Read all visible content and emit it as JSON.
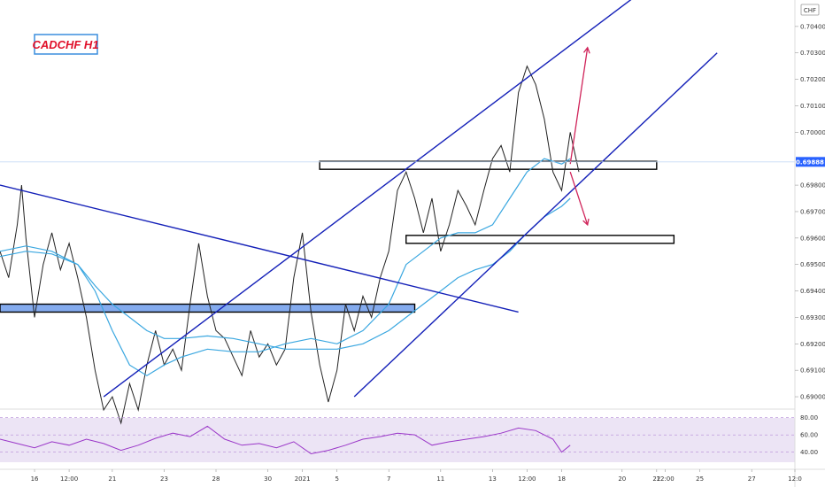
{
  "chart_data": {
    "type": "line",
    "title": "CADCHF H1",
    "currency": "CHF",
    "current_price": "0.69888",
    "ylim": [
      0.6896,
      0.705
    ],
    "y_ticks": [
      "0.70400",
      "0.70300",
      "0.70200",
      "0.70100",
      "0.70000",
      "0.69800",
      "0.69700",
      "0.69600",
      "0.69500",
      "0.69400",
      "0.69300",
      "0.69200",
      "0.69100",
      "0.69000"
    ],
    "x_ticks": [
      {
        "label": "16",
        "t": 4
      },
      {
        "label": "12:00",
        "t": 8
      },
      {
        "label": "21",
        "t": 13
      },
      {
        "label": "23",
        "t": 19
      },
      {
        "label": "28",
        "t": 25
      },
      {
        "label": "30",
        "t": 31
      },
      {
        "label": "2021",
        "t": 35
      },
      {
        "label": "5",
        "t": 39
      },
      {
        "label": "7",
        "t": 45
      },
      {
        "label": "11",
        "t": 51
      },
      {
        "label": "13",
        "t": 57
      },
      {
        "label": "12:00",
        "t": 61
      },
      {
        "label": "18",
        "t": 65
      },
      {
        "label": "20",
        "t": 72
      },
      {
        "label": "22",
        "t": 76
      },
      {
        "label": "12:00",
        "t": 77
      },
      {
        "label": "25",
        "t": 81
      },
      {
        "label": "27",
        "t": 87
      },
      {
        "label": "12:0",
        "t": 92
      }
    ],
    "series": [
      {
        "color": "#222222",
        "points": [
          [
            0,
            0.6955
          ],
          [
            1,
            0.6945
          ],
          [
            2,
            0.6965
          ],
          [
            2.5,
            0.698
          ],
          [
            3,
            0.696
          ],
          [
            4,
            0.693
          ],
          [
            5,
            0.695
          ],
          [
            6,
            0.6962
          ],
          [
            7,
            0.6948
          ],
          [
            8,
            0.6958
          ],
          [
            9,
            0.6945
          ],
          [
            10,
            0.693
          ],
          [
            11,
            0.691
          ],
          [
            12,
            0.6895
          ],
          [
            13,
            0.69
          ],
          [
            14,
            0.689
          ],
          [
            15,
            0.6905
          ],
          [
            16,
            0.6895
          ],
          [
            17,
            0.6912
          ],
          [
            18,
            0.6925
          ],
          [
            19,
            0.6912
          ],
          [
            20,
            0.6918
          ],
          [
            21,
            0.691
          ],
          [
            22,
            0.6935
          ],
          [
            23,
            0.6958
          ],
          [
            24,
            0.6938
          ],
          [
            25,
            0.6925
          ],
          [
            26,
            0.6922
          ],
          [
            27,
            0.6915
          ],
          [
            28,
            0.6908
          ],
          [
            29,
            0.6925
          ],
          [
            30,
            0.6915
          ],
          [
            31,
            0.692
          ],
          [
            32,
            0.6912
          ],
          [
            33,
            0.6918
          ],
          [
            34,
            0.6945
          ],
          [
            35,
            0.6962
          ],
          [
            36,
            0.6932
          ],
          [
            37,
            0.6912
          ],
          [
            38,
            0.6898
          ],
          [
            39,
            0.691
          ],
          [
            40,
            0.6935
          ],
          [
            41,
            0.6925
          ],
          [
            42,
            0.6938
          ],
          [
            43,
            0.693
          ],
          [
            44,
            0.6945
          ],
          [
            45,
            0.6955
          ],
          [
            46,
            0.6978
          ],
          [
            47,
            0.6985
          ],
          [
            48,
            0.6975
          ],
          [
            49,
            0.6962
          ],
          [
            50,
            0.6975
          ],
          [
            51,
            0.6955
          ],
          [
            52,
            0.6965
          ],
          [
            53,
            0.6978
          ],
          [
            54,
            0.6972
          ],
          [
            55,
            0.6965
          ],
          [
            56,
            0.6978
          ],
          [
            57,
            0.699
          ],
          [
            58,
            0.6995
          ],
          [
            59,
            0.6985
          ],
          [
            60,
            0.7015
          ],
          [
            61,
            0.7025
          ],
          [
            62,
            0.7018
          ],
          [
            63,
            0.7005
          ],
          [
            64,
            0.6985
          ],
          [
            65,
            0.6978
          ],
          [
            66,
            0.7
          ],
          [
            67,
            0.6985
          ]
        ]
      },
      {
        "color": "#3aa7e0",
        "points": [
          [
            0,
            0.6953
          ],
          [
            3,
            0.6955
          ],
          [
            6,
            0.6954
          ],
          [
            9,
            0.695
          ],
          [
            11,
            0.694
          ],
          [
            13,
            0.6925
          ],
          [
            15,
            0.6912
          ],
          [
            17,
            0.6908
          ],
          [
            19,
            0.6912
          ],
          [
            21,
            0.6915
          ],
          [
            24,
            0.6918
          ],
          [
            27,
            0.6917
          ],
          [
            30,
            0.6917
          ],
          [
            33,
            0.692
          ],
          [
            36,
            0.6922
          ],
          [
            39,
            0.692
          ],
          [
            42,
            0.6925
          ],
          [
            45,
            0.6935
          ],
          [
            47,
            0.695
          ],
          [
            49,
            0.6955
          ],
          [
            51,
            0.696
          ],
          [
            53,
            0.6962
          ],
          [
            55,
            0.6962
          ],
          [
            57,
            0.6965
          ],
          [
            59,
            0.6975
          ],
          [
            61,
            0.6985
          ],
          [
            63,
            0.699
          ],
          [
            65,
            0.6988
          ],
          [
            66,
            0.699
          ]
        ]
      },
      {
        "color": "#3aa7e0",
        "points": [
          [
            0,
            0.6955
          ],
          [
            3,
            0.6957
          ],
          [
            6,
            0.6955
          ],
          [
            9,
            0.695
          ],
          [
            11,
            0.6942
          ],
          [
            13,
            0.6935
          ],
          [
            15,
            0.693
          ],
          [
            17,
            0.6925
          ],
          [
            19,
            0.6922
          ],
          [
            21,
            0.6922
          ],
          [
            24,
            0.6923
          ],
          [
            27,
            0.6922
          ],
          [
            30,
            0.692
          ],
          [
            33,
            0.6918
          ],
          [
            36,
            0.6918
          ],
          [
            39,
            0.6918
          ],
          [
            42,
            0.692
          ],
          [
            45,
            0.6925
          ],
          [
            47,
            0.693
          ],
          [
            49,
            0.6935
          ],
          [
            51,
            0.694
          ],
          [
            53,
            0.6945
          ],
          [
            55,
            0.6948
          ],
          [
            57,
            0.695
          ],
          [
            59,
            0.6955
          ],
          [
            61,
            0.6962
          ],
          [
            63,
            0.6968
          ],
          [
            65,
            0.6972
          ],
          [
            66,
            0.6975
          ]
        ]
      }
    ],
    "trend_lines": [
      {
        "from": [
          0,
          0.698
        ],
        "to": [
          60,
          0.6932
        ]
      },
      {
        "from": [
          12,
          0.69
        ],
        "to": [
          75,
          0.7055
        ]
      },
      {
        "from": [
          41,
          0.69
        ],
        "to": [
          83,
          0.703
        ]
      }
    ],
    "zones": [
      {
        "from": [
          0,
          0.6935
        ],
        "to": [
          48,
          0.6932
        ],
        "fill": "#5b8fe8"
      },
      {
        "from": [
          37,
          0.6989
        ],
        "to": [
          76,
          0.6986
        ],
        "fill": "none"
      },
      {
        "from": [
          47,
          0.6961
        ],
        "to": [
          78,
          0.6958
        ],
        "fill": "none"
      }
    ],
    "projection_arrows": [
      {
        "from": [
          66,
          0.6988
        ],
        "to": [
          68,
          0.7032
        ]
      },
      {
        "from": [
          66,
          0.6985
        ],
        "to": [
          68,
          0.6965
        ]
      }
    ],
    "rsi": {
      "levels": [
        "80.00",
        "60.00",
        "40.00"
      ],
      "points": [
        [
          0,
          55
        ],
        [
          2,
          50
        ],
        [
          4,
          45
        ],
        [
          6,
          52
        ],
        [
          8,
          48
        ],
        [
          10,
          55
        ],
        [
          12,
          50
        ],
        [
          14,
          42
        ],
        [
          16,
          48
        ],
        [
          18,
          56
        ],
        [
          20,
          62
        ],
        [
          22,
          58
        ],
        [
          24,
          70
        ],
        [
          26,
          55
        ],
        [
          28,
          48
        ],
        [
          30,
          50
        ],
        [
          32,
          45
        ],
        [
          34,
          52
        ],
        [
          36,
          38
        ],
        [
          38,
          42
        ],
        [
          40,
          48
        ],
        [
          42,
          55
        ],
        [
          44,
          58
        ],
        [
          46,
          62
        ],
        [
          48,
          60
        ],
        [
          50,
          48
        ],
        [
          52,
          52
        ],
        [
          54,
          55
        ],
        [
          56,
          58
        ],
        [
          58,
          62
        ],
        [
          60,
          68
        ],
        [
          62,
          65
        ],
        [
          64,
          55
        ],
        [
          65,
          40
        ],
        [
          66,
          48
        ]
      ]
    }
  }
}
